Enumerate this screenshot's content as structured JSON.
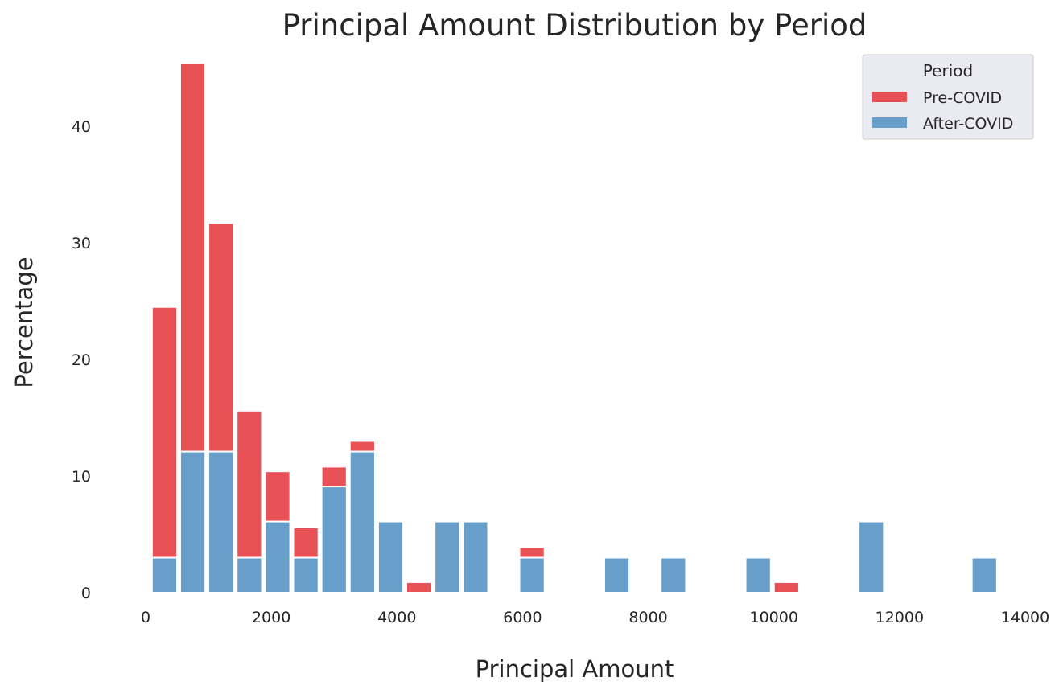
{
  "chart_data": {
    "type": "bar",
    "stacked": true,
    "title": "Principal Amount Distribution by Period",
    "xlabel": "Principal Amount",
    "ylabel": "Percentage",
    "xlim": [
      0,
      14000
    ],
    "ylim": [
      0,
      46
    ],
    "x_ticks": [
      0,
      2000,
      4000,
      6000,
      8000,
      10000,
      12000,
      14000
    ],
    "x_tick_labels": [
      "0",
      "2000",
      "4000",
      "6000",
      "8000",
      "10000",
      "12000",
      "14000"
    ],
    "y_ticks": [
      0,
      10,
      20,
      30,
      40
    ],
    "y_tick_labels": [
      "0",
      "10",
      "20",
      "30",
      "40"
    ],
    "grid": false,
    "legend": {
      "title": "Period",
      "position": "top-right",
      "entries": [
        "Pre-COVID",
        "After-COVID"
      ]
    },
    "bins": [
      {
        "x0": 100,
        "x1": 500
      },
      {
        "x0": 550,
        "x1": 950
      },
      {
        "x0": 1000,
        "x1": 1400
      },
      {
        "x0": 1450,
        "x1": 1850
      },
      {
        "x0": 1900,
        "x1": 2300
      },
      {
        "x0": 2350,
        "x1": 2750
      },
      {
        "x0": 2800,
        "x1": 3200
      },
      {
        "x0": 3250,
        "x1": 3650
      },
      {
        "x0": 3700,
        "x1": 4100
      },
      {
        "x0": 4150,
        "x1": 4550
      },
      {
        "x0": 4600,
        "x1": 5000
      },
      {
        "x0": 5050,
        "x1": 5450
      },
      {
        "x0": 5950,
        "x1": 6350
      },
      {
        "x0": 7300,
        "x1": 7700
      },
      {
        "x0": 8200,
        "x1": 8600
      },
      {
        "x0": 9550,
        "x1": 9950
      },
      {
        "x0": 10000,
        "x1": 10400
      },
      {
        "x0": 11350,
        "x1": 11750
      },
      {
        "x0": 13150,
        "x1": 13550
      }
    ],
    "series": [
      {
        "name": "After-COVID",
        "color": "#689fca",
        "values": [
          3.0,
          12.1,
          12.1,
          3.0,
          6.1,
          3.0,
          9.1,
          12.1,
          6.1,
          0,
          6.1,
          6.1,
          3.0,
          3.0,
          3.0,
          3.0,
          0,
          6.1,
          3.0
        ]
      },
      {
        "name": "Pre-COVID",
        "color": "#e85257",
        "values": [
          21.5,
          33.3,
          19.6,
          12.6,
          4.3,
          2.6,
          1.7,
          0.9,
          0,
          0.9,
          0,
          0,
          0.9,
          0,
          0,
          0,
          0.9,
          0,
          0
        ]
      }
    ]
  }
}
